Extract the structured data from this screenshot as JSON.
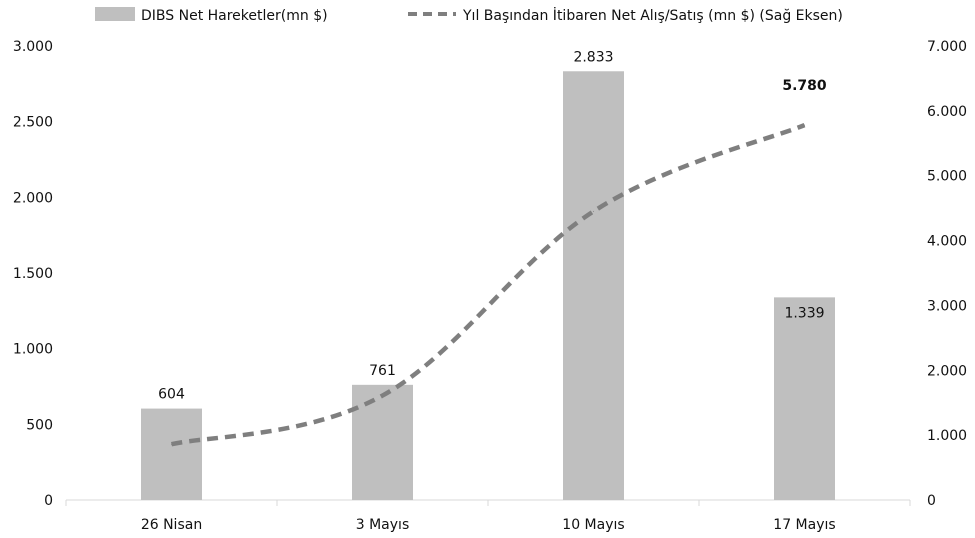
{
  "chart_data": {
    "type": "bar",
    "title": "",
    "categories": [
      "26 Nisan",
      "3 Mayıs",
      "10 Mayıs",
      "17 Mayıs"
    ],
    "series": [
      {
        "name": "DIBS Net Hareketler(mn $)",
        "type": "bar",
        "axis": "left",
        "color": "#bfbfbf",
        "values": [
          604,
          761,
          2833,
          1339
        ],
        "data_labels": [
          "604",
          "761",
          "2.833",
          "1.339"
        ]
      },
      {
        "name": "Yıl Başından İtibaren Net Alış/Satış (mn $) (Sağ Eksen)",
        "type": "line",
        "style": "dashed",
        "axis": "right",
        "color": "#7f7f7f",
        "values": [
          860,
          1610,
          4450,
          5780
        ],
        "data_labels": [
          "",
          "",
          "",
          "5.780"
        ]
      }
    ],
    "y_left": {
      "ylim": [
        0,
        3000
      ],
      "ticks": [
        0,
        500,
        1000,
        1500,
        2000,
        2500,
        3000
      ],
      "tick_labels": [
        "0",
        "500",
        "1.000",
        "1.500",
        "2.000",
        "2.500",
        "3.000"
      ]
    },
    "y_right": {
      "ylim": [
        0,
        7000
      ],
      "ticks": [
        0,
        1000,
        2000,
        3000,
        4000,
        5000,
        6000,
        7000
      ],
      "tick_labels": [
        "0",
        "1.000",
        "2.000",
        "3.000",
        "4.000",
        "5.000",
        "6.000",
        "7.000"
      ]
    },
    "legend": "top",
    "grid": false
  }
}
